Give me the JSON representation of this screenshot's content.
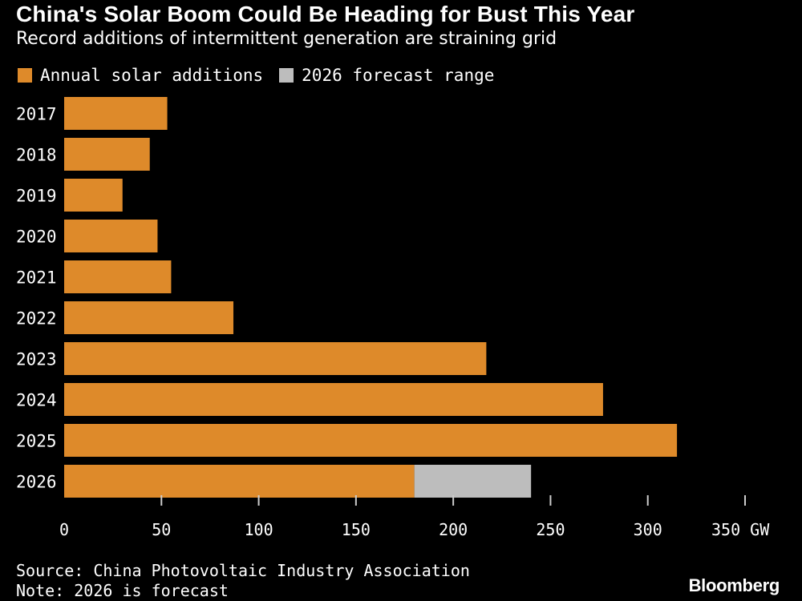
{
  "header": {
    "title": "China's Solar Boom Could Be Heading for Bust This Year",
    "subtitle": "Record additions of intermittent generation are straining grid"
  },
  "colors": {
    "bar": "#de8a2a",
    "forecast": "#bdbdbd",
    "axis": "#cccccc",
    "text": "#ffffff",
    "background": "#000000"
  },
  "chart_data": {
    "type": "bar",
    "orientation": "horizontal",
    "stacked": true,
    "title": "China's Solar Boom Could Be Heading for Bust This Year",
    "subtitle": "Record additions of intermittent generation are straining grid",
    "categories": [
      "2017",
      "2018",
      "2019",
      "2020",
      "2021",
      "2022",
      "2023",
      "2024",
      "2025",
      "2026"
    ],
    "series": [
      {
        "name": "Annual solar additions",
        "values": [
          53,
          44,
          30,
          48,
          55,
          87,
          217,
          277,
          315,
          180
        ]
      },
      {
        "name": "2026 forecast range",
        "values": [
          0,
          0,
          0,
          0,
          0,
          0,
          0,
          0,
          0,
          60
        ]
      }
    ],
    "xlim": [
      0,
      350
    ],
    "xticks": [
      0,
      50,
      100,
      150,
      200,
      250,
      300,
      350
    ],
    "xtick_labels": [
      "0",
      "50",
      "100",
      "150",
      "200",
      "250",
      "300",
      "350 GW"
    ],
    "xlabel": "",
    "ylabel": "",
    "legend_position": "top-left",
    "grid": false
  },
  "footer": {
    "source": "Source: China Photovoltaic Industry Association",
    "note": "Note: 2026 is forecast",
    "brand": "Bloomberg"
  }
}
